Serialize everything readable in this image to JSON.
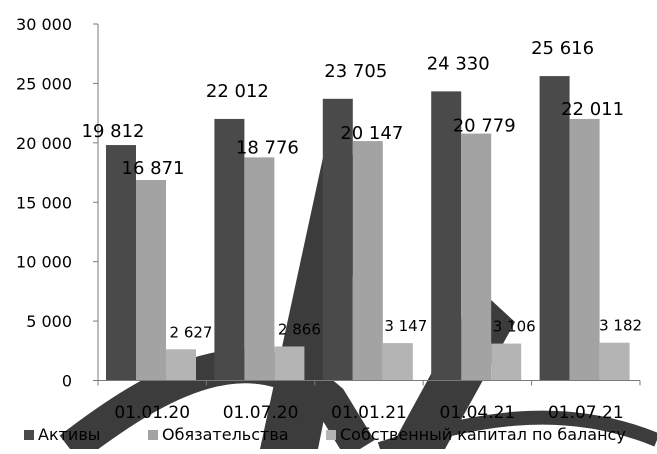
{
  "chart_data": {
    "type": "bar",
    "categories": [
      "01.01.20",
      "01.07.20",
      "01.01.21",
      "01.04.21",
      "01.07.21"
    ],
    "series": [
      {
        "name": "Активы",
        "color": "#4a4a4a",
        "values": [
          19812,
          22012,
          23705,
          24330,
          25616
        ],
        "labels": [
          "19 812",
          "22 012",
          "23 705",
          "24 330",
          "25 616"
        ]
      },
      {
        "name": "Обязательства",
        "color": "#a3a3a3",
        "values": [
          16871,
          18776,
          20147,
          20779,
          22011
        ],
        "labels": [
          "16 871",
          "18 776",
          "20 147",
          "20 779",
          "22 011"
        ]
      },
      {
        "name": "Собственный капитал по балансу",
        "color": "#b4b4b4",
        "values": [
          2627,
          2866,
          3147,
          3106,
          3182
        ],
        "labels": [
          "2 627",
          "2 866",
          "3 147",
          "3 106",
          "3 182"
        ]
      }
    ],
    "ylim": [
      0,
      30000
    ],
    "yticks": [
      0,
      5000,
      10000,
      15000,
      20000,
      25000,
      30000
    ],
    "ytick_labels": [
      "0",
      "5 000",
      "10 000",
      "15 000",
      "20 000",
      "25 000",
      "30 000"
    ],
    "grid": false,
    "legend_position": "bottom",
    "overlay_color": "#3c3c3c"
  }
}
